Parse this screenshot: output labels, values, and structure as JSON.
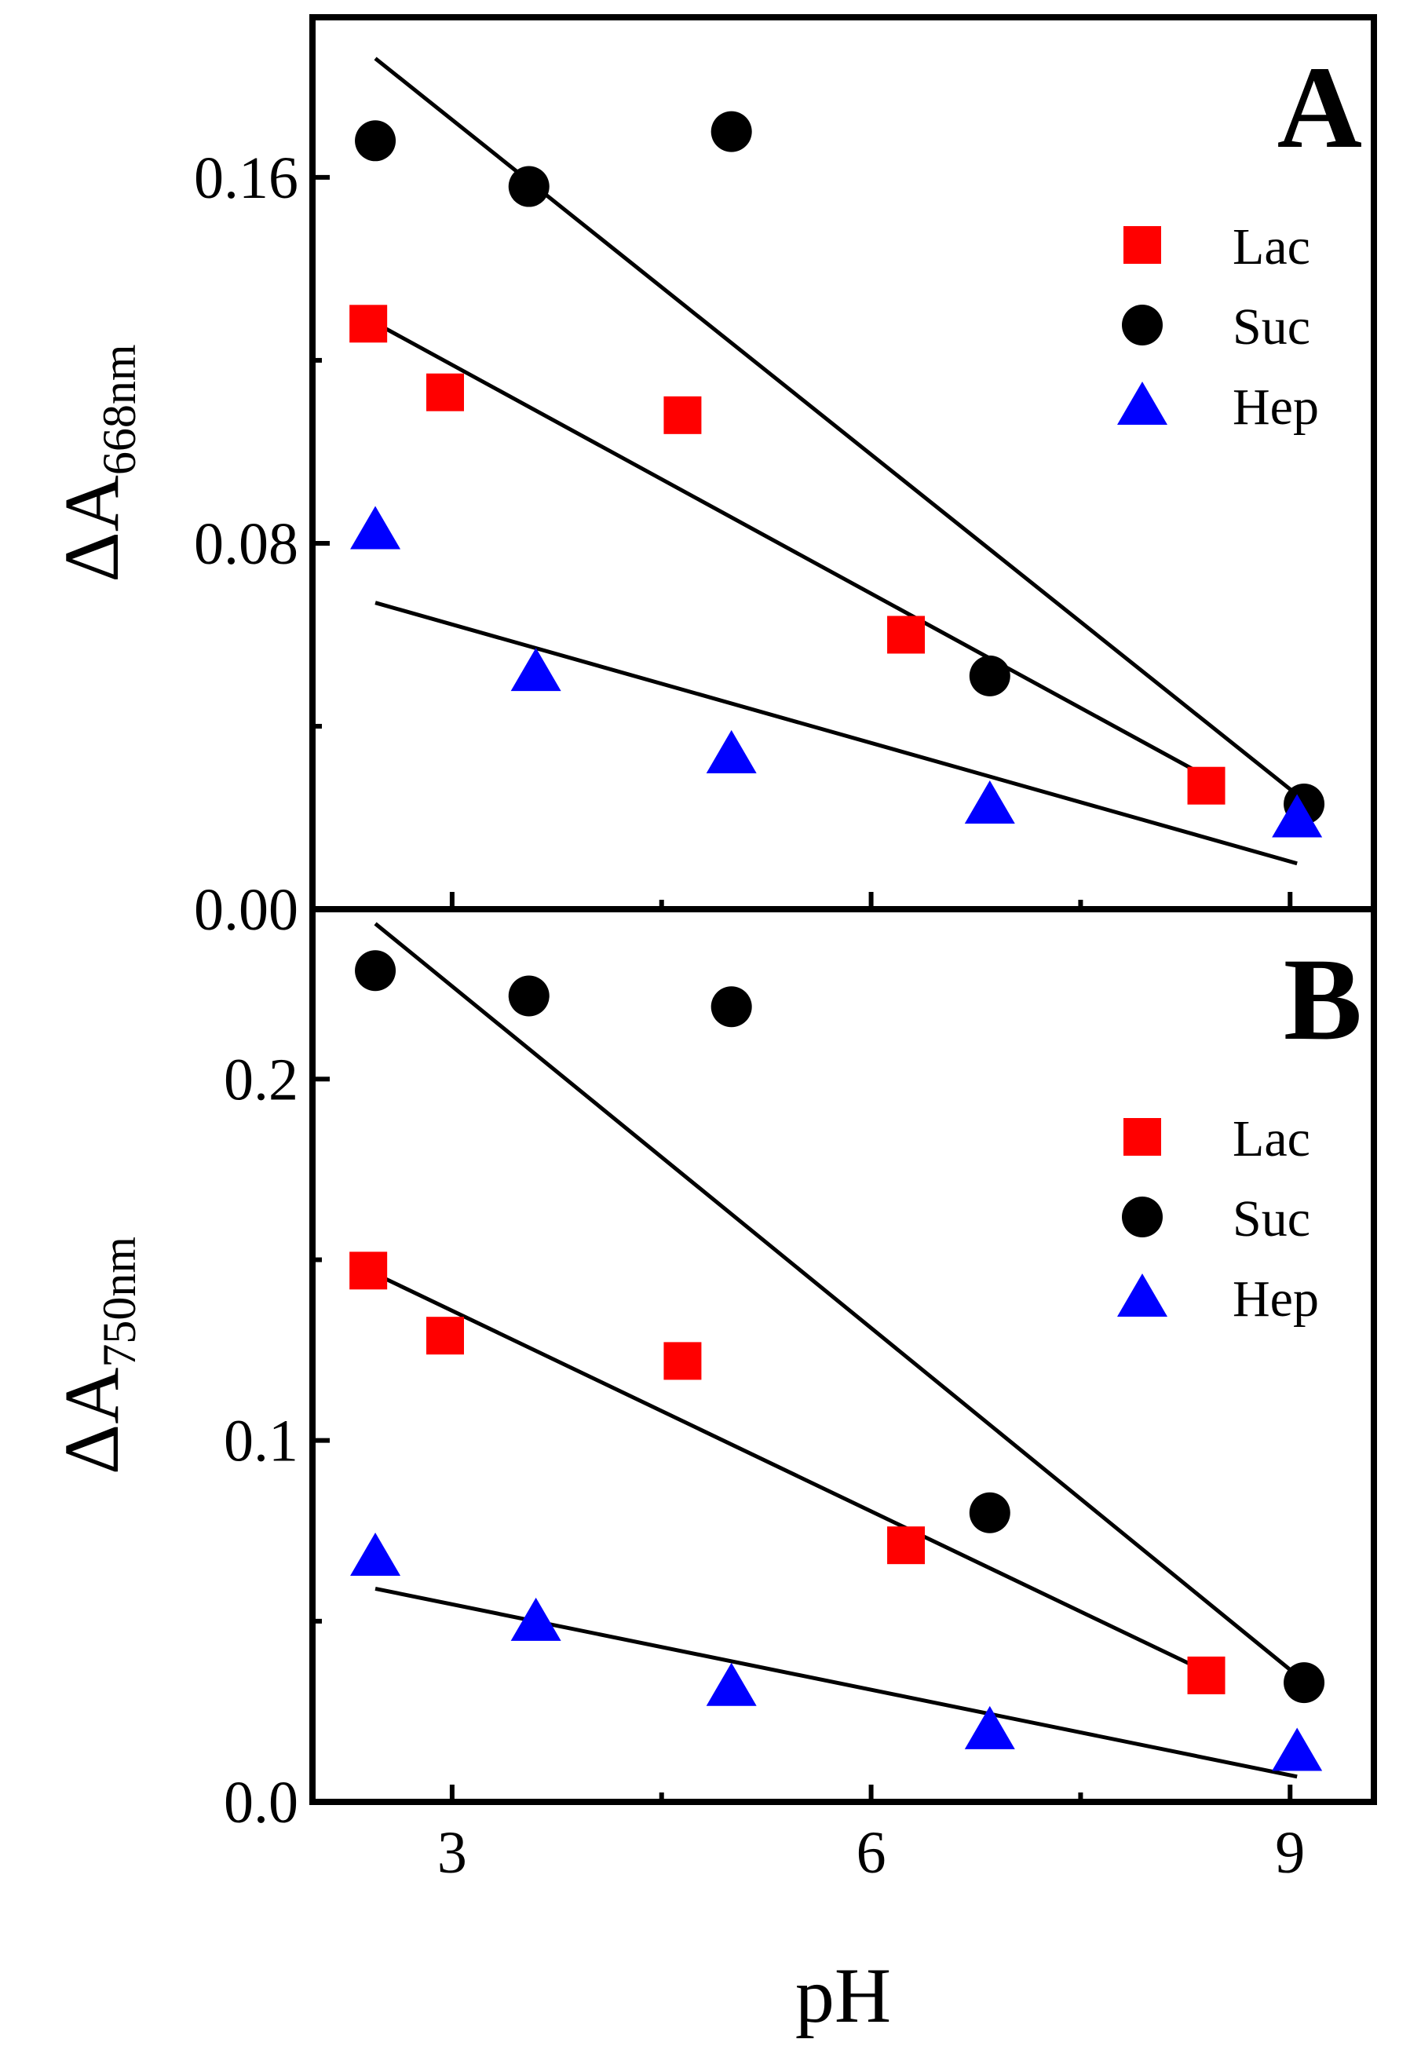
{
  "chart_data": [
    {
      "type": "scatter",
      "panel_label": "A",
      "ylabel_main": "ΔA",
      "ylabel_sub": "668nm",
      "xlabel": "pH",
      "xlim": [
        2.0,
        9.6
      ],
      "ylim": [
        0.0,
        0.195
      ],
      "yticks": [
        "0.00",
        "0.08",
        "0.16"
      ],
      "ytick_values": [
        0.0,
        0.08,
        0.16
      ],
      "legend_position": "right",
      "series": [
        {
          "name": "Lac",
          "marker": "square",
          "color": "#ff0000",
          "points": [
            [
              2.4,
              0.128
            ],
            [
              2.95,
              0.113
            ],
            [
              4.65,
              0.108
            ],
            [
              6.25,
              0.06
            ],
            [
              8.4,
              0.027
            ]
          ],
          "fit_line": [
            [
              2.4,
              0.129
            ],
            [
              8.4,
              0.029
            ]
          ]
        },
        {
          "name": "Suc",
          "marker": "circle",
          "color": "#000000",
          "points": [
            [
              2.45,
              0.168
            ],
            [
              3.55,
              0.158
            ],
            [
              5.0,
              0.17
            ],
            [
              6.85,
              0.051
            ],
            [
              9.1,
              0.023
            ]
          ],
          "fit_line": [
            [
              2.45,
              0.186
            ],
            [
              9.05,
              0.025
            ]
          ]
        },
        {
          "name": "Hep",
          "marker": "triangle",
          "color": "#0000ff",
          "points": [
            [
              2.45,
              0.083
            ],
            [
              3.6,
              0.052
            ],
            [
              5.0,
              0.034
            ],
            [
              6.85,
              0.023
            ],
            [
              9.05,
              0.02
            ]
          ],
          "fit_line": [
            [
              2.45,
              0.067
            ],
            [
              9.05,
              0.01
            ]
          ]
        }
      ]
    },
    {
      "type": "scatter",
      "panel_label": "B",
      "ylabel_main": "ΔA",
      "ylabel_sub": "750nm",
      "xlabel": "pH",
      "xlim": [
        2.0,
        9.6
      ],
      "ylim": [
        0.0,
        0.247
      ],
      "yticks": [
        "0.0",
        "0.1",
        "0.2"
      ],
      "ytick_values": [
        0.0,
        0.1,
        0.2
      ],
      "xticks": [
        "3",
        "6",
        "9"
      ],
      "xtick_values": [
        3,
        6,
        9
      ],
      "legend_position": "right",
      "series": [
        {
          "name": "Lac",
          "marker": "square",
          "color": "#ff0000",
          "points": [
            [
              2.4,
              0.147
            ],
            [
              2.95,
              0.129
            ],
            [
              4.65,
              0.122
            ],
            [
              6.25,
              0.071
            ],
            [
              8.4,
              0.035
            ]
          ],
          "fit_line": [
            [
              2.4,
              0.147
            ],
            [
              8.4,
              0.036
            ]
          ]
        },
        {
          "name": "Suc",
          "marker": "circle",
          "color": "#000000",
          "points": [
            [
              2.45,
              0.23
            ],
            [
              3.55,
              0.223
            ],
            [
              5.0,
              0.22
            ],
            [
              6.85,
              0.08
            ],
            [
              9.1,
              0.033
            ]
          ],
          "fit_line": [
            [
              2.45,
              0.243
            ],
            [
              9.05,
              0.035
            ]
          ]
        },
        {
          "name": "Hep",
          "marker": "triangle",
          "color": "#0000ff",
          "points": [
            [
              2.45,
              0.068
            ],
            [
              3.6,
              0.05
            ],
            [
              5.0,
              0.032
            ],
            [
              6.85,
              0.02
            ],
            [
              9.05,
              0.014
            ]
          ],
          "fit_line": [
            [
              2.45,
              0.059
            ],
            [
              9.05,
              0.007
            ]
          ]
        }
      ]
    }
  ]
}
